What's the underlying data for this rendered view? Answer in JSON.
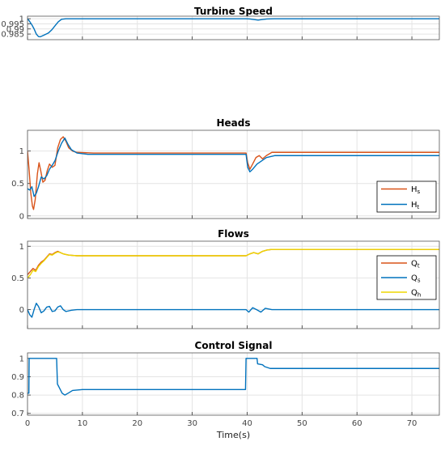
{
  "chart_data": [
    {
      "type": "line",
      "title": "Turbine Speed",
      "xlim": [
        0,
        75
      ],
      "ylim": [
        0.9795,
        1.0025
      ],
      "yticks": [
        "1",
        "0.995",
        "0.99",
        "0.985"
      ],
      "ytick_values": [
        1,
        0.995,
        0.99,
        0.985
      ],
      "grid": true,
      "legend": null,
      "series": [
        {
          "color": "#0072BD",
          "points": [
            [
              0,
              1.0
            ],
            [
              0.3,
              0.998
            ],
            [
              0.8,
              0.994
            ],
            [
              1.2,
              0.99
            ],
            [
              1.6,
              0.985
            ],
            [
              2.0,
              0.9825
            ],
            [
              2.3,
              0.9823
            ],
            [
              2.6,
              0.983
            ],
            [
              3.2,
              0.9845
            ],
            [
              3.8,
              0.986
            ],
            [
              4.4,
              0.989
            ],
            [
              5.0,
              0.993
            ],
            [
              5.6,
              0.997
            ],
            [
              6.2,
              0.9995
            ],
            [
              7,
              1.0
            ],
            [
              10,
              1.0
            ],
            [
              20,
              1.0
            ],
            [
              39.8,
              1.0
            ],
            [
              40.5,
              0.9998
            ],
            [
              41.3,
              0.9992
            ],
            [
              42,
              0.9987
            ],
            [
              42.8,
              0.9993
            ],
            [
              43.6,
              0.9998
            ],
            [
              45,
              1.0
            ],
            [
              75,
              1.0
            ]
          ]
        }
      ]
    },
    {
      "type": "line",
      "title": "Heads",
      "xlim": [
        0,
        75
      ],
      "ylim": [
        -0.04,
        1.32
      ],
      "yticks": [
        "1",
        "0.5",
        "0"
      ],
      "ytick_values": [
        1,
        0.5,
        0
      ],
      "grid": true,
      "legend": "bottom-right",
      "series": [
        {
          "name": "Hs",
          "name_main": "H",
          "name_sub": "s",
          "color": "#D95319",
          "points": [
            [
              0,
              1.0
            ],
            [
              0.3,
              0.7
            ],
            [
              0.6,
              0.35
            ],
            [
              0.9,
              0.15
            ],
            [
              1.1,
              0.1
            ],
            [
              1.4,
              0.25
            ],
            [
              1.8,
              0.65
            ],
            [
              2.1,
              0.82
            ],
            [
              2.4,
              0.7
            ],
            [
              2.8,
              0.52
            ],
            [
              3.2,
              0.55
            ],
            [
              3.6,
              0.7
            ],
            [
              4.0,
              0.8
            ],
            [
              4.5,
              0.75
            ],
            [
              5.0,
              0.78
            ],
            [
              5.5,
              1.05
            ],
            [
              6.0,
              1.18
            ],
            [
              6.5,
              1.22
            ],
            [
              7.0,
              1.15
            ],
            [
              7.5,
              1.05
            ],
            [
              8.2,
              1.0
            ],
            [
              9,
              0.98
            ],
            [
              12,
              0.97
            ],
            [
              20,
              0.97
            ],
            [
              39.8,
              0.97
            ],
            [
              40.1,
              0.82
            ],
            [
              40.5,
              0.72
            ],
            [
              41.0,
              0.8
            ],
            [
              41.6,
              0.9
            ],
            [
              42.2,
              0.93
            ],
            [
              42.8,
              0.88
            ],
            [
              43.5,
              0.93
            ],
            [
              44.5,
              0.98
            ],
            [
              46,
              0.98
            ],
            [
              75,
              0.98
            ]
          ]
        },
        {
          "name": "Ht",
          "name_main": "H",
          "name_sub": "t",
          "color": "#0072BD",
          "points": [
            [
              0,
              0.42
            ],
            [
              0.4,
              0.4
            ],
            [
              0.8,
              0.45
            ],
            [
              1.2,
              0.3
            ],
            [
              1.6,
              0.35
            ],
            [
              2.0,
              0.45
            ],
            [
              2.5,
              0.6
            ],
            [
              3.0,
              0.57
            ],
            [
              3.5,
              0.62
            ],
            [
              4.0,
              0.72
            ],
            [
              4.5,
              0.78
            ],
            [
              5.0,
              0.85
            ],
            [
              5.6,
              1.0
            ],
            [
              6.2,
              1.12
            ],
            [
              6.8,
              1.2
            ],
            [
              7.4,
              1.1
            ],
            [
              8.0,
              1.02
            ],
            [
              9,
              0.97
            ],
            [
              11,
              0.95
            ],
            [
              20,
              0.95
            ],
            [
              39.8,
              0.95
            ],
            [
              40.1,
              0.75
            ],
            [
              40.5,
              0.68
            ],
            [
              41.0,
              0.72
            ],
            [
              41.8,
              0.8
            ],
            [
              42.5,
              0.84
            ],
            [
              43.5,
              0.9
            ],
            [
              45,
              0.93
            ],
            [
              75,
              0.93
            ]
          ]
        }
      ]
    },
    {
      "type": "line",
      "title": "Flows",
      "xlim": [
        0,
        75
      ],
      "ylim": [
        -0.3,
        1.08
      ],
      "yticks": [
        "1",
        "0.5",
        "0"
      ],
      "ytick_values": [
        1,
        0.5,
        0
      ],
      "grid": true,
      "legend": "top-right",
      "series": [
        {
          "name": "Qt",
          "name_main": "Q",
          "name_sub": "t",
          "color": "#D95319",
          "points": [
            [
              0,
              0.55
            ],
            [
              0.5,
              0.6
            ],
            [
              1.0,
              0.65
            ],
            [
              1.5,
              0.62
            ],
            [
              2.0,
              0.7
            ],
            [
              2.5,
              0.75
            ],
            [
              3.0,
              0.78
            ],
            [
              3.5,
              0.83
            ],
            [
              4.0,
              0.88
            ],
            [
              4.5,
              0.87
            ],
            [
              5.0,
              0.9
            ],
            [
              5.5,
              0.92
            ],
            [
              6.0,
              0.9
            ],
            [
              6.5,
              0.88
            ],
            [
              7.5,
              0.86
            ],
            [
              9,
              0.85
            ],
            [
              20,
              0.85
            ],
            [
              39.8,
              0.85
            ],
            [
              40.5,
              0.88
            ],
            [
              41.2,
              0.9
            ],
            [
              42.0,
              0.88
            ],
            [
              42.8,
              0.92
            ],
            [
              43.6,
              0.94
            ],
            [
              44.5,
              0.95
            ],
            [
              46,
              0.95
            ],
            [
              75,
              0.95
            ]
          ]
        },
        {
          "name": "Qs",
          "name_main": "Q",
          "name_sub": "s",
          "color": "#0072BD",
          "points": [
            [
              0,
              0.0
            ],
            [
              0.4,
              -0.08
            ],
            [
              0.8,
              -0.12
            ],
            [
              1.2,
              0.0
            ],
            [
              1.6,
              0.1
            ],
            [
              2.0,
              0.05
            ],
            [
              2.5,
              -0.05
            ],
            [
              3.0,
              -0.02
            ],
            [
              3.5,
              0.04
            ],
            [
              4.0,
              0.05
            ],
            [
              4.5,
              -0.03
            ],
            [
              5.0,
              -0.02
            ],
            [
              5.5,
              0.04
            ],
            [
              6.0,
              0.06
            ],
            [
              6.5,
              0.0
            ],
            [
              7.0,
              -0.03
            ],
            [
              8.0,
              -0.01
            ],
            [
              9,
              0.0
            ],
            [
              20,
              0.0
            ],
            [
              39.8,
              0.0
            ],
            [
              40.3,
              -0.04
            ],
            [
              41.0,
              0.03
            ],
            [
              41.7,
              0.0
            ],
            [
              42.5,
              -0.04
            ],
            [
              43.3,
              0.02
            ],
            [
              44.5,
              0.0
            ],
            [
              75,
              0.0
            ]
          ]
        },
        {
          "name": "Qh",
          "name_main": "Q",
          "name_sub": "h",
          "color": "#EDD500",
          "points": [
            [
              0,
              0.5
            ],
            [
              0.5,
              0.55
            ],
            [
              1.0,
              0.62
            ],
            [
              1.5,
              0.6
            ],
            [
              2.0,
              0.68
            ],
            [
              2.5,
              0.73
            ],
            [
              3.0,
              0.77
            ],
            [
              3.5,
              0.82
            ],
            [
              4.0,
              0.87
            ],
            [
              4.5,
              0.86
            ],
            [
              5.0,
              0.89
            ],
            [
              5.5,
              0.91
            ],
            [
              6.0,
              0.9
            ],
            [
              6.5,
              0.88
            ],
            [
              7.5,
              0.86
            ],
            [
              9,
              0.85
            ],
            [
              20,
              0.85
            ],
            [
              39.8,
              0.85
            ],
            [
              40.5,
              0.88
            ],
            [
              41.2,
              0.9
            ],
            [
              42.0,
              0.88
            ],
            [
              42.8,
              0.92
            ],
            [
              43.6,
              0.94
            ],
            [
              44.5,
              0.95
            ],
            [
              75,
              0.95
            ]
          ]
        }
      ]
    },
    {
      "type": "line",
      "title": "Control Signal",
      "xlim": [
        0,
        75
      ],
      "ylim": [
        0.69,
        1.03
      ],
      "yticks": [
        "1",
        "0.9",
        "0.8",
        "0.7"
      ],
      "ytick_values": [
        1,
        0.9,
        0.8,
        0.7
      ],
      "xticks": [
        "0",
        "10",
        "20",
        "30",
        "40",
        "50",
        "60",
        "70"
      ],
      "xtick_values": [
        0,
        10,
        20,
        30,
        40,
        50,
        60,
        70
      ],
      "xlabel": "Time(s)",
      "grid": true,
      "legend": null,
      "series": [
        {
          "color": "#0072BD",
          "points": [
            [
              0,
              0.81
            ],
            [
              0.25,
              0.81
            ],
            [
              0.3,
              1.0
            ],
            [
              5.3,
              1.0
            ],
            [
              5.45,
              0.86
            ],
            [
              5.8,
              0.84
            ],
            [
              6.3,
              0.81
            ],
            [
              6.8,
              0.8
            ],
            [
              7.4,
              0.81
            ],
            [
              8.2,
              0.825
            ],
            [
              10,
              0.83
            ],
            [
              20,
              0.83
            ],
            [
              39.7,
              0.83
            ],
            [
              39.8,
              1.0
            ],
            [
              41.8,
              1.0
            ],
            [
              41.9,
              0.97
            ],
            [
              42.8,
              0.965
            ],
            [
              43.2,
              0.955
            ],
            [
              44.2,
              0.945
            ],
            [
              46,
              0.945
            ],
            [
              75,
              0.945
            ]
          ]
        }
      ]
    }
  ]
}
